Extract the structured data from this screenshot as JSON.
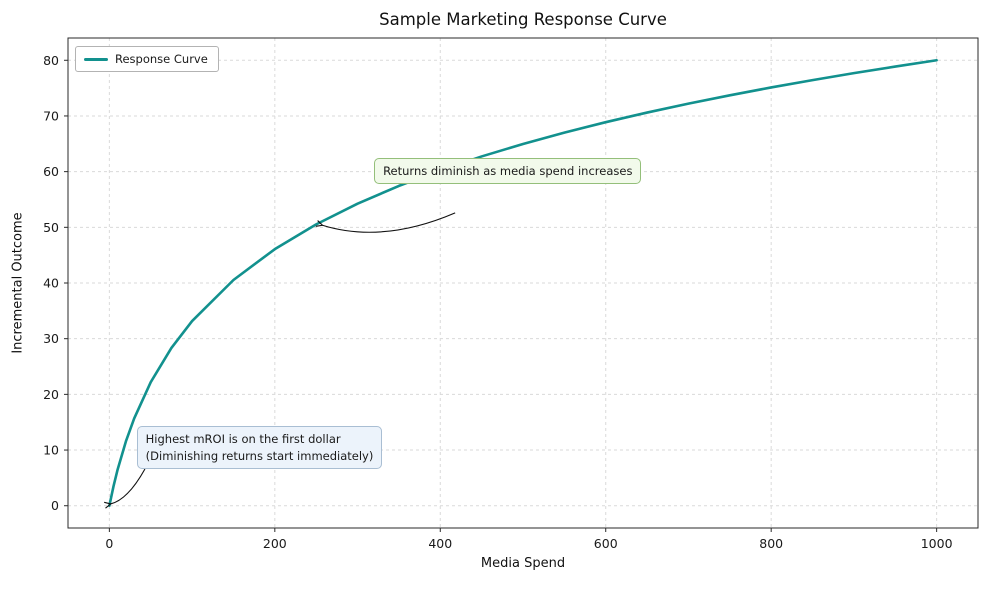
{
  "chart_data": {
    "type": "line",
    "title": "Sample Marketing Response Curve",
    "xlabel": "Media Spend",
    "ylabel": "Incremental Outcome",
    "xlim": [
      -50,
      1050
    ],
    "ylim": [
      -4,
      84
    ],
    "xticks": [
      0,
      200,
      400,
      600,
      800,
      1000
    ],
    "yticks": [
      0,
      10,
      20,
      30,
      40,
      50,
      60,
      70,
      80
    ],
    "grid": true,
    "grid_style": "dashed",
    "legend_position": "upper left",
    "legend": [
      {
        "label": "Response Curve",
        "color": "#12918e"
      }
    ],
    "series": [
      {
        "name": "Response Curve",
        "color": "#12918e",
        "x": [
          0,
          5,
          10,
          20,
          30,
          50,
          75,
          100,
          150,
          200,
          250,
          300,
          350,
          400,
          450,
          500,
          550,
          600,
          650,
          700,
          750,
          800,
          850,
          900,
          950,
          1000
        ],
        "y": [
          0,
          3.49,
          6.51,
          11.56,
          15.68,
          22.19,
          28.34,
          33.17,
          40.54,
          46.08,
          50.53,
          54.25,
          57.44,
          60.24,
          62.73,
          64.97,
          67.01,
          68.88,
          70.61,
          72.21,
          73.71,
          75.12,
          76.44,
          77.69,
          78.87,
          80.0
        ]
      }
    ],
    "annotations": [
      {
        "text": "Returns diminish as media spend increases",
        "text_xy": [
          320,
          62.5
        ],
        "arrow": {
          "from": [
            418,
            52.6
          ],
          "ctrl": [
            330,
            47.0
          ],
          "to": [
            257,
            50.4
          ]
        },
        "bg": "#f2faeb",
        "border": "#94bf7a"
      },
      {
        "lines": [
          "Highest mROI is on the first dollar",
          "(Diminishing returns start immediately)"
        ],
        "text_xy": [
          33,
          14.3
        ],
        "arrow": {
          "from": [
            43,
            6.6
          ],
          "ctrl": [
            22,
            1.0
          ],
          "to": [
            1,
            0.3
          ]
        },
        "bg": "#ecf3fb",
        "border": "#a9bed3"
      }
    ]
  }
}
